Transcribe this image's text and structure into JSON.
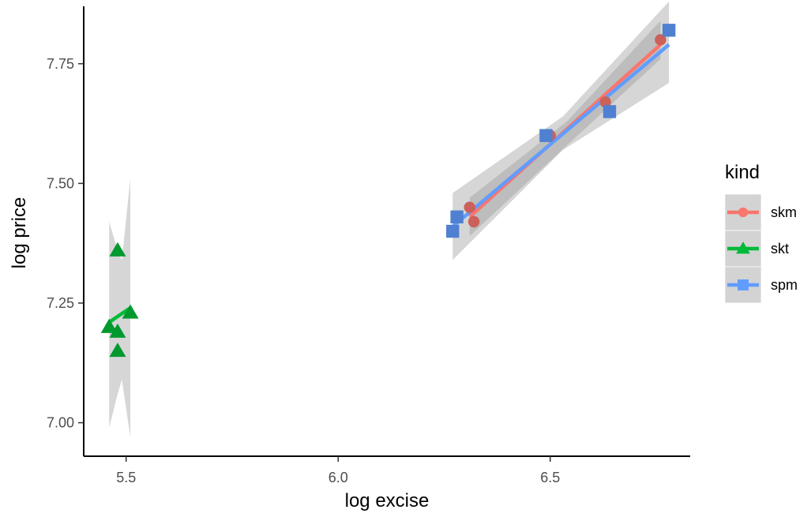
{
  "chart_data": {
    "type": "scatter",
    "title": "",
    "xlabel": "log excise",
    "ylabel": "log price",
    "xlim": [
      5.4,
      6.83
    ],
    "ylim": [
      6.93,
      7.87
    ],
    "x_ticks": [
      5.5,
      6.0,
      6.5
    ],
    "x_tick_labels": [
      "5.5",
      "6.0",
      "6.5"
    ],
    "y_ticks": [
      7.0,
      7.25,
      7.5,
      7.75
    ],
    "y_tick_labels": [
      "7.00",
      "7.25",
      "7.50",
      "7.75"
    ],
    "grid": false,
    "legend": {
      "title": "kind",
      "position": "right"
    },
    "series": [
      {
        "name": "skm",
        "color": "#F8766D",
        "marker": "circle",
        "points": [
          {
            "x": 6.31,
            "y": 7.45
          },
          {
            "x": 6.32,
            "y": 7.42
          },
          {
            "x": 6.5,
            "y": 7.6
          },
          {
            "x": 6.63,
            "y": 7.67
          },
          {
            "x": 6.76,
            "y": 7.8
          }
        ],
        "fit_line": [
          {
            "x": 6.31,
            "y": 7.43
          },
          {
            "x": 6.76,
            "y": 7.79
          }
        ],
        "ribbon": [
          {
            "x": 6.31,
            "lo": 7.39,
            "hi": 7.47
          },
          {
            "x": 6.54,
            "lo": 7.58,
            "hi": 7.63
          },
          {
            "x": 6.76,
            "lo": 7.76,
            "hi": 7.84
          }
        ]
      },
      {
        "name": "skt",
        "color": "#00BA38",
        "marker": "triangle",
        "points": [
          {
            "x": 5.46,
            "y": 7.2
          },
          {
            "x": 5.48,
            "y": 7.19
          },
          {
            "x": 5.48,
            "y": 7.15
          },
          {
            "x": 5.48,
            "y": 7.36
          },
          {
            "x": 5.51,
            "y": 7.23
          }
        ],
        "fit_line": [
          {
            "x": 5.46,
            "y": 7.21
          },
          {
            "x": 5.51,
            "y": 7.24
          }
        ],
        "ribbon": [
          {
            "x": 5.46,
            "lo": 6.99,
            "hi": 7.42
          },
          {
            "x": 5.48,
            "lo": 7.06,
            "hi": 7.36
          },
          {
            "x": 5.49,
            "lo": 7.09,
            "hi": 7.34
          },
          {
            "x": 5.51,
            "lo": 6.97,
            "hi": 7.51
          }
        ]
      },
      {
        "name": "spm",
        "color": "#619CFF",
        "marker": "square",
        "points": [
          {
            "x": 6.27,
            "y": 7.4
          },
          {
            "x": 6.28,
            "y": 7.43
          },
          {
            "x": 6.49,
            "y": 7.6
          },
          {
            "x": 6.64,
            "y": 7.65
          },
          {
            "x": 6.78,
            "y": 7.82
          }
        ],
        "fit_line": [
          {
            "x": 6.27,
            "y": 7.41
          },
          {
            "x": 6.78,
            "y": 7.79
          }
        ],
        "ribbon": [
          {
            "x": 6.27,
            "lo": 7.34,
            "hi": 7.48
          },
          {
            "x": 6.53,
            "lo": 7.57,
            "hi": 7.64
          },
          {
            "x": 6.78,
            "lo": 7.71,
            "hi": 7.88
          }
        ]
      }
    ]
  }
}
